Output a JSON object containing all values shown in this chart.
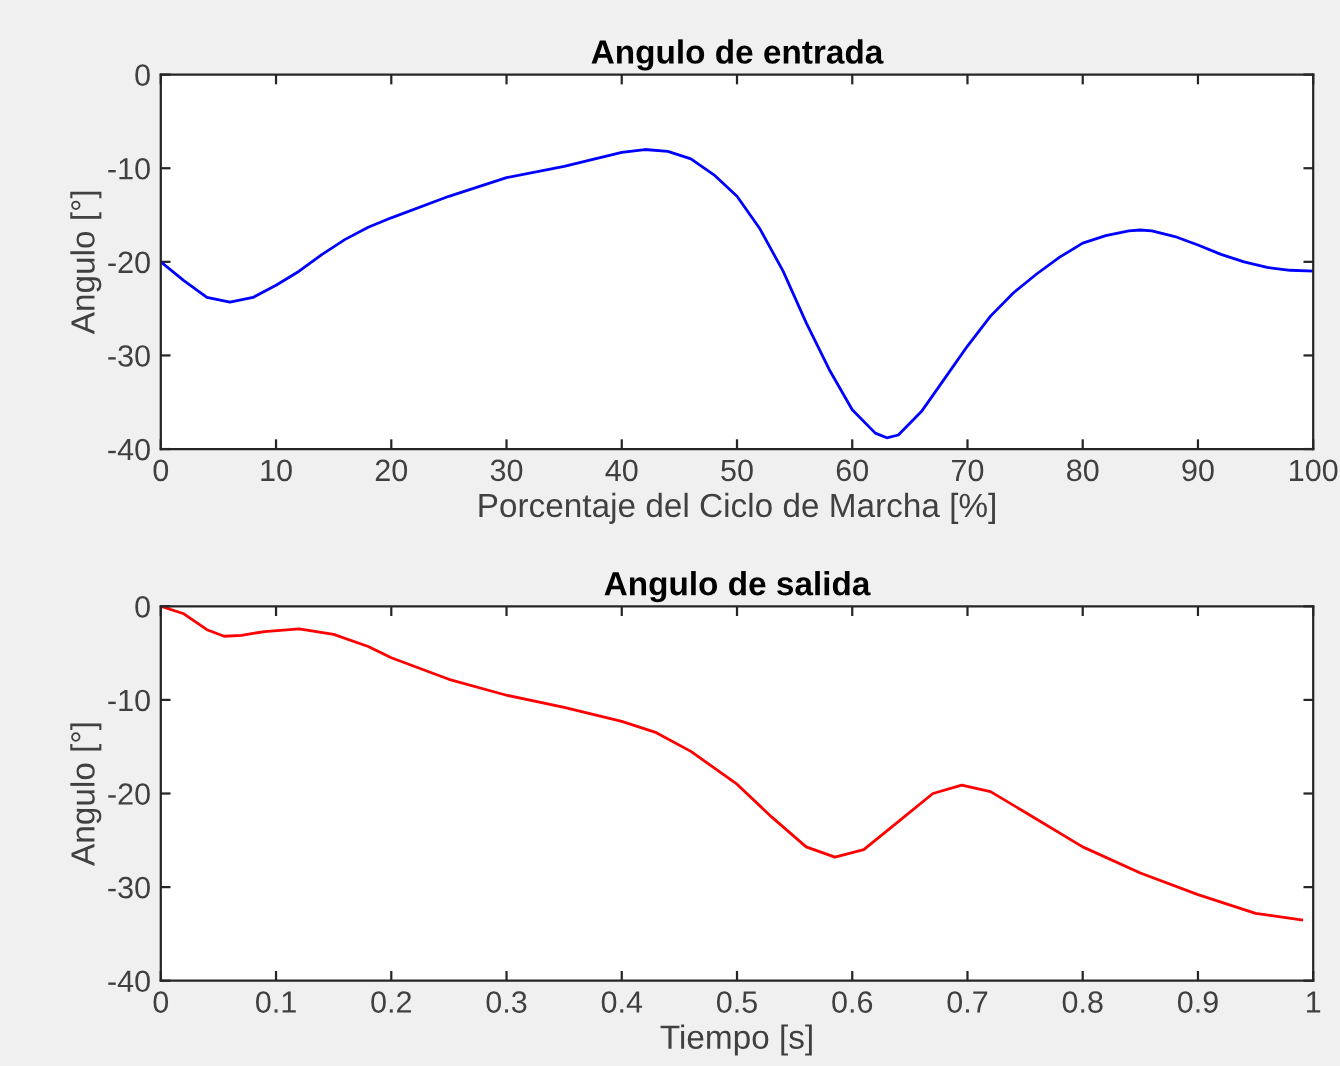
{
  "chart_data": [
    {
      "type": "line",
      "title": "Angulo de entrada",
      "xlabel": "Porcentaje del Ciclo de Marcha [%]",
      "ylabel": "Angulo [°]",
      "x": [
        0,
        2,
        4,
        6,
        8,
        10,
        12,
        14,
        16,
        18,
        20,
        25,
        30,
        35,
        40,
        42,
        44,
        46,
        48,
        50,
        52,
        54,
        56,
        58,
        60,
        62,
        63,
        64,
        66,
        68,
        70,
        72,
        74,
        76,
        78,
        80,
        82,
        84,
        85,
        86,
        88,
        90,
        92,
        94,
        96,
        98,
        100
      ],
      "series": [
        {
          "color": "#0000ff",
          "values": [
            -20,
            -22,
            -23.8,
            -24.3,
            -23.8,
            -22.5,
            -21,
            -19.2,
            -17.6,
            -16.3,
            -15.3,
            -13,
            -11,
            -9.8,
            -8.3,
            -8,
            -8.2,
            -9,
            -10.7,
            -13,
            -16.5,
            -21,
            -26.5,
            -31.5,
            -35.8,
            -38.3,
            -38.8,
            -38.5,
            -36,
            -32.5,
            -29,
            -25.8,
            -23.3,
            -21.3,
            -19.5,
            -18,
            -17.2,
            -16.7,
            -16.6,
            -16.7,
            -17.3,
            -18.2,
            -19.2,
            -20,
            -20.6,
            -20.9,
            -21
          ]
        }
      ],
      "xlim": [
        0,
        100
      ],
      "ylim": [
        -40,
        0
      ],
      "xticks": [
        0,
        10,
        20,
        30,
        40,
        50,
        60,
        70,
        80,
        90,
        100
      ],
      "yticks": [
        -40,
        -30,
        -20,
        -10,
        0
      ],
      "grid": false,
      "legend": false
    },
    {
      "type": "line",
      "title": "Angulo de salida",
      "xlabel": "Tiempo [s]",
      "ylabel": "Angulo [°]",
      "x": [
        0,
        0.02,
        0.04,
        0.055,
        0.07,
        0.09,
        0.12,
        0.15,
        0.18,
        0.2,
        0.25,
        0.3,
        0.35,
        0.4,
        0.43,
        0.46,
        0.5,
        0.53,
        0.56,
        0.585,
        0.61,
        0.64,
        0.67,
        0.695,
        0.72,
        0.75,
        0.8,
        0.85,
        0.9,
        0.95,
        0.99
      ],
      "series": [
        {
          "color": "#ff0000",
          "values": [
            0,
            -0.8,
            -2.5,
            -3.2,
            -3.1,
            -2.7,
            -2.4,
            -3,
            -4.3,
            -5.5,
            -7.8,
            -9.5,
            -10.8,
            -12.3,
            -13.5,
            -15.5,
            -19,
            -22.5,
            -25.7,
            -26.8,
            -26,
            -23,
            -20,
            -19.1,
            -19.8,
            -22,
            -25.7,
            -28.5,
            -30.8,
            -32.8,
            -33.5
          ]
        }
      ],
      "xlim": [
        0,
        1
      ],
      "ylim": [
        -40,
        0
      ],
      "xticks": [
        0,
        0.1,
        0.2,
        0.3,
        0.4,
        0.5,
        0.6,
        0.7,
        0.8,
        0.9,
        1
      ],
      "yticks": [
        -40,
        -30,
        -20,
        -10,
        0
      ],
      "grid": false,
      "legend": false
    }
  ]
}
